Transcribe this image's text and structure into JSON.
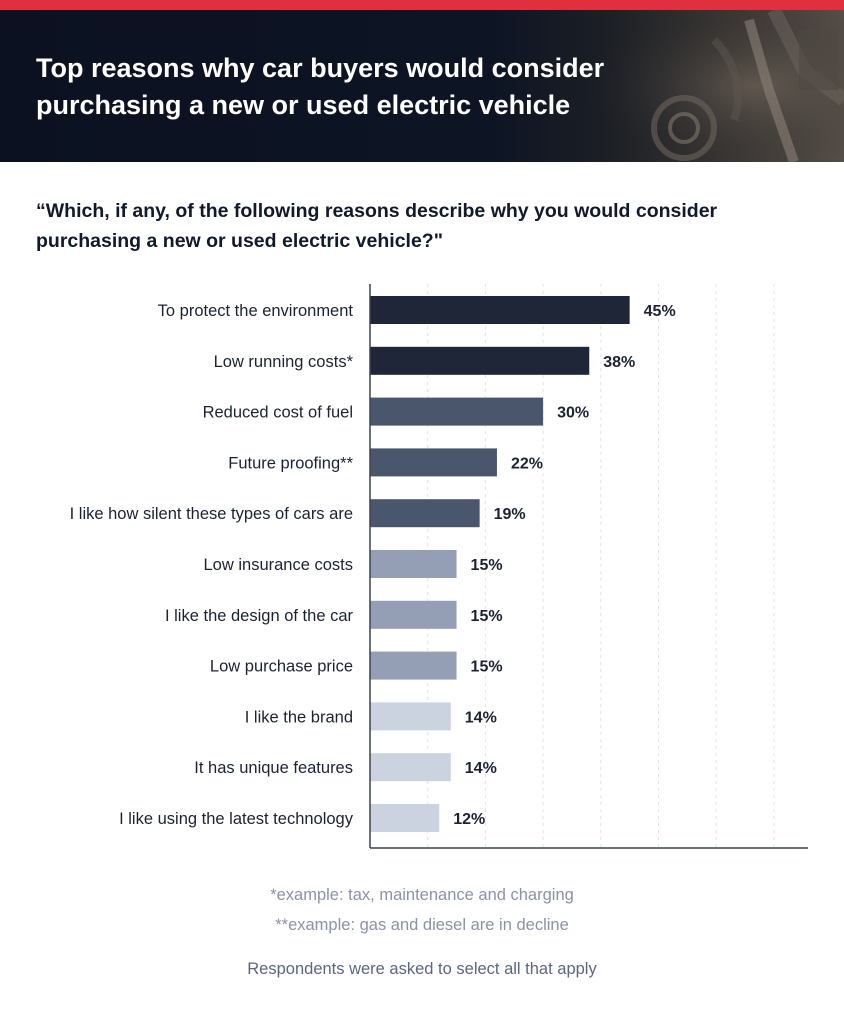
{
  "header": {
    "title": "Top reasons why car buyers would consider purchasing a new or used electric vehicle"
  },
  "question": "“Which, if any, of the following reasons describe why you would consider purchasing a new or used electric vehicle?\"",
  "footnotes": {
    "note1": "*example: tax, maintenance and charging",
    "note2": "**example:  gas and diesel are in decline",
    "respondents": "Respondents were asked to select all that apply"
  },
  "colors": {
    "accent_stripe": "#e0303f",
    "header_bg": "#0b1120",
    "bar_tier1": "#1e2638",
    "bar_tier2": "#4a566c",
    "bar_tier3": "#949fb6",
    "bar_tier4": "#ccd3e0"
  },
  "chart_data": {
    "type": "bar",
    "orientation": "horizontal",
    "categories": [
      "To protect the environment",
      "Low running costs*",
      "Reduced cost of fuel",
      "Future proofing**",
      "I like how silent these types of cars are",
      "Low insurance costs",
      "I like the design of the car",
      "Low purchase price",
      "I like the brand",
      "It has unique features",
      "I like using the latest technology"
    ],
    "values": [
      45,
      38,
      30,
      22,
      19,
      15,
      15,
      15,
      14,
      14,
      12
    ],
    "value_labels": [
      "45%",
      "38%",
      "30%",
      "22%",
      "19%",
      "15%",
      "15%",
      "15%",
      "14%",
      "14%",
      "12%"
    ],
    "color_tiers": [
      1,
      1,
      2,
      2,
      2,
      3,
      3,
      3,
      4,
      4,
      4
    ],
    "xlim": [
      0,
      75
    ],
    "gridlines_at": [
      10,
      20,
      30,
      40,
      50,
      60,
      70
    ],
    "grid": true,
    "legend": "none",
    "title": "",
    "xlabel": "",
    "ylabel": ""
  }
}
